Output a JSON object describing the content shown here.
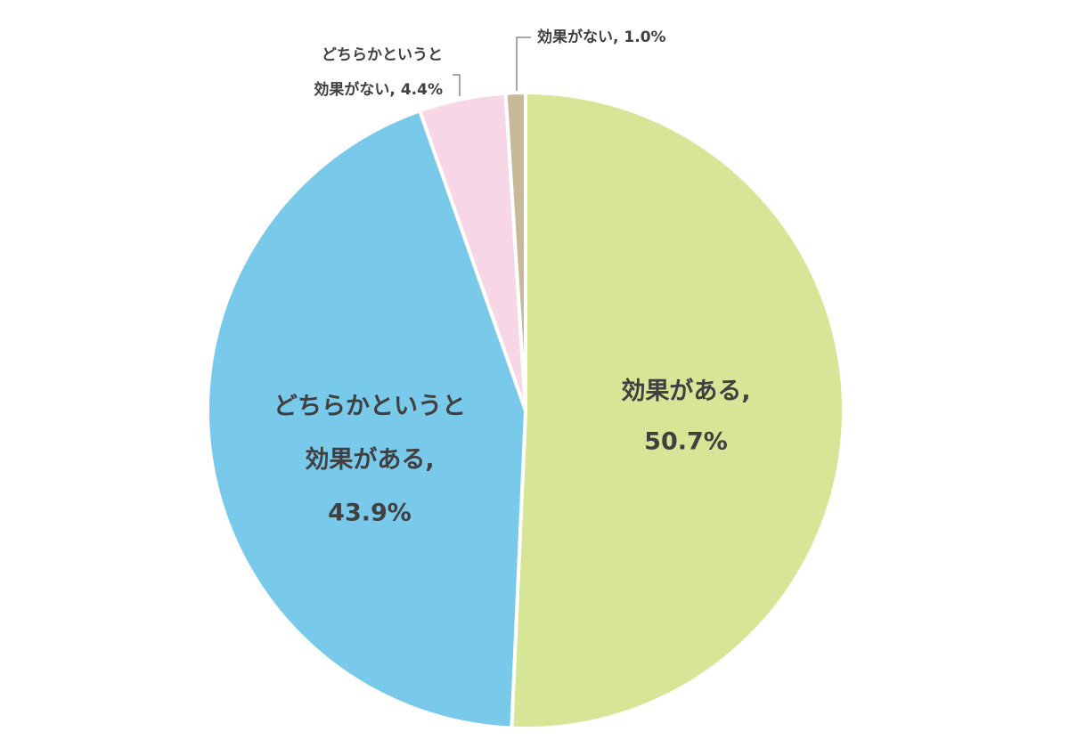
{
  "chart_data": {
    "type": "pie",
    "categories": [
      [
        "効果がある,"
      ],
      [
        "どちらかというと",
        "効果がある,"
      ],
      [
        "どちらかというと",
        "効果がない,"
      ],
      [
        "効果がない,"
      ]
    ],
    "values": [
      50.7,
      43.9,
      4.4,
      1.0
    ],
    "value_labels": [
      "50.7%",
      "43.9%",
      "4.4%",
      "1.0%"
    ],
    "colors": [
      "#d7e597",
      "#79c9ea",
      "#f7d7e6",
      "#c8b99a"
    ]
  }
}
